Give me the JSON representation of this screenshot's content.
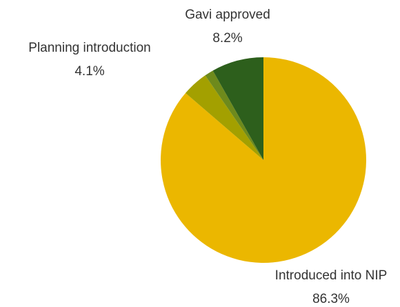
{
  "chart_data": {
    "type": "pie",
    "categories": [
      "Introduced into NIP",
      null,
      "Planning introduction",
      "Gavi approved"
    ],
    "values": [
      86.3,
      1.4,
      4.1,
      8.2
    ],
    "value_labels": [
      "86.3%",
      null,
      "4.1%",
      "8.2%"
    ],
    "colors": [
      "#ebb700",
      "#6e8a1c",
      "#a3a000",
      "#2d5f1c"
    ]
  }
}
